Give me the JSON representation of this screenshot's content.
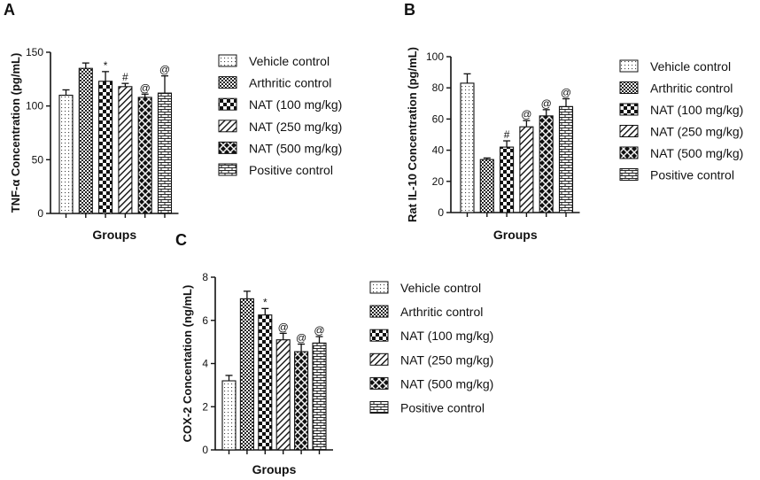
{
  "series_names": [
    "Vehicle control",
    "Arthritic control",
    "NAT (100 mg/kg)",
    "NAT (250 mg/kg)",
    "NAT (500 mg/kg)",
    "Positive control"
  ],
  "chart_data": [
    {
      "panel": "A",
      "type": "bar",
      "ylabel": "TNF-α Concentration (pg/mL)",
      "xlabel": "Groups",
      "ylim": [
        0,
        150
      ],
      "yticks": [
        0,
        50,
        100,
        150
      ],
      "values": [
        110,
        135,
        123,
        118,
        108,
        112
      ],
      "errors": [
        5,
        5,
        9,
        3,
        3,
        16
      ],
      "annotations": [
        "",
        "",
        "*",
        "#",
        "@",
        "@"
      ]
    },
    {
      "panel": "B",
      "type": "bar",
      "ylabel": "Rat IL-10 Concentration (pg/mL)",
      "xlabel": "Groups",
      "ylim": [
        0,
        100
      ],
      "yticks": [
        0,
        20,
        40,
        60,
        80,
        100
      ],
      "values": [
        83,
        34,
        42,
        55,
        62,
        68
      ],
      "errors": [
        6,
        1,
        4,
        4,
        4,
        5
      ],
      "annotations": [
        "",
        "",
        "#",
        "@",
        "@",
        "@"
      ]
    },
    {
      "panel": "C",
      "type": "bar",
      "ylabel": "COX-2 Concentation (ng/mL)",
      "xlabel": "Groups",
      "ylim": [
        0,
        8
      ],
      "yticks": [
        0,
        2,
        4,
        6,
        8
      ],
      "values": [
        3.2,
        7.0,
        6.25,
        5.1,
        4.55,
        4.95
      ],
      "errors": [
        0.25,
        0.35,
        0.3,
        0.3,
        0.35,
        0.3
      ],
      "annotations": [
        "",
        "",
        "*",
        "@",
        "@",
        "@"
      ]
    }
  ]
}
